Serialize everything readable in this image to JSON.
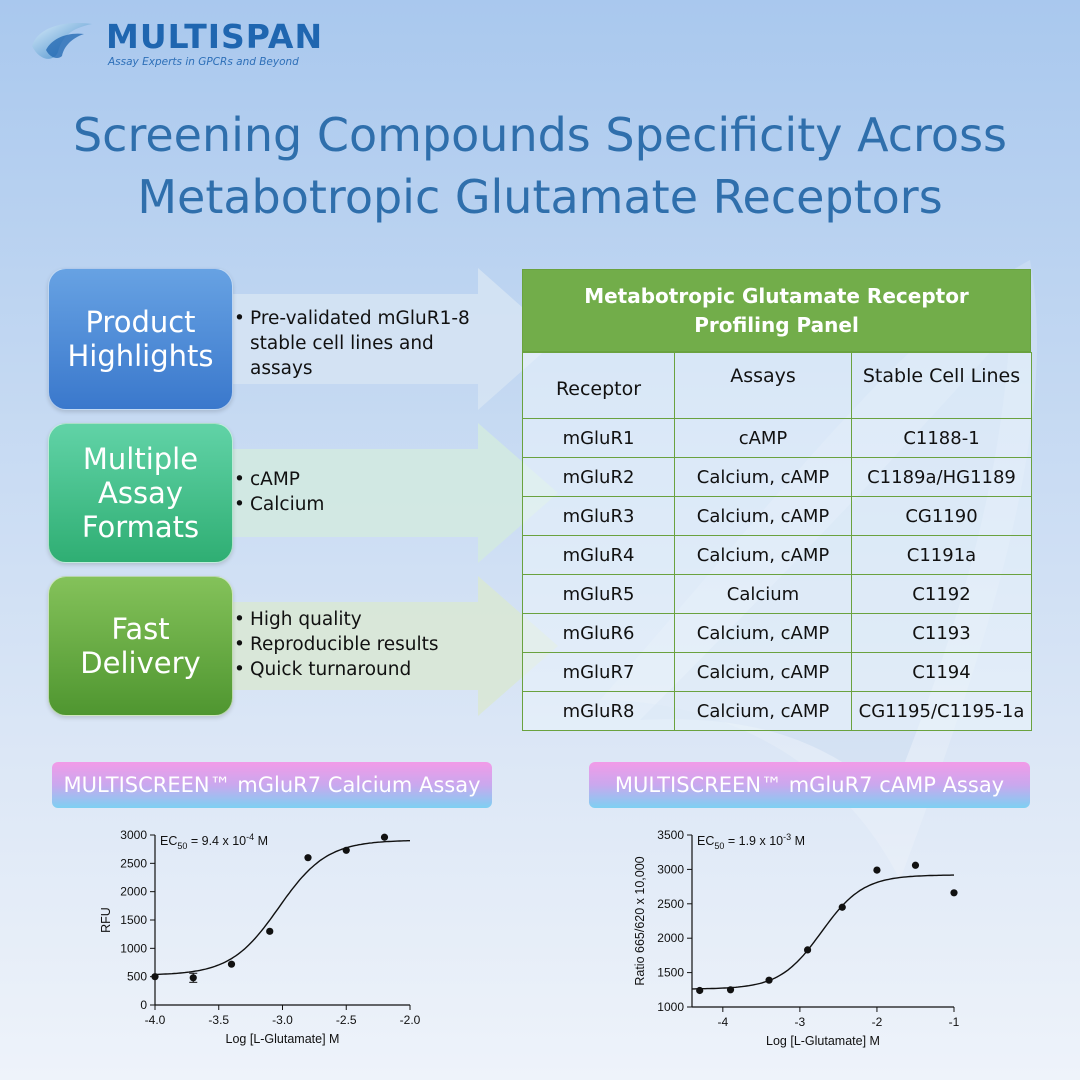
{
  "brand": {
    "name": "MULTISPAN",
    "tagline": "Assay Experts in GPCRs and Beyond"
  },
  "title": {
    "line1": "Screening Compounds Specificity Across",
    "line2": "Metabotropic Glutamate Receptors"
  },
  "features": [
    {
      "heading": [
        "Product",
        "Highlights"
      ],
      "bullets": [
        "Pre-validated mGluR1-8 stable cell lines and assays"
      ]
    },
    {
      "heading": [
        "Multiple",
        "Assay",
        "Formats"
      ],
      "bullets": [
        "cAMP",
        "Calcium"
      ]
    },
    {
      "heading": [
        "Fast",
        "Delivery"
      ],
      "bullets": [
        "High quality",
        "Reproducible results",
        "Quick turnaround"
      ]
    }
  ],
  "colors": {
    "title": "#2f6fac",
    "table_header": "#72ad4a",
    "box_blue": "#3a78cc",
    "box_teal": "#2fae73",
    "box_green": "#4f9630"
  },
  "table": {
    "title_line1": "Metabotropic Glutamate Receptor",
    "title_line2": "Profiling Panel",
    "columns": [
      "Receptor",
      "Assays",
      "Stable Cell Lines"
    ],
    "rows": [
      [
        "mGluR1",
        "cAMP",
        "C1188-1"
      ],
      [
        "mGluR2",
        "Calcium, cAMP",
        "C1189a/HG1189"
      ],
      [
        "mGluR3",
        "Calcium, cAMP",
        "CG1190"
      ],
      [
        "mGluR4",
        "Calcium, cAMP",
        "C1191a"
      ],
      [
        "mGluR5",
        "Calcium",
        "C1192"
      ],
      [
        "mGluR6",
        "Calcium, cAMP",
        "C1193"
      ],
      [
        "mGluR7",
        "Calcium, cAMP",
        "C1194"
      ],
      [
        "mGluR8",
        "Calcium, cAMP",
        "CG1195/C1195-1a"
      ]
    ]
  },
  "assays": [
    {
      "label": "MULTISCREEN™ mGluR7 Calcium Assay"
    },
    {
      "label": "MULTISCREEN™ mGluR7 cAMP Assay"
    }
  ],
  "chart_data": [
    {
      "type": "scatter",
      "xlabel": "Log [L-Glutamate] M",
      "ylabel": "RFU",
      "xlim": [
        -4.0,
        -2.0
      ],
      "ylim": [
        0,
        3000
      ],
      "xticks": [
        -4.0,
        -3.5,
        -3.0,
        -2.5,
        -2.0
      ],
      "xtick_labels": [
        "-4.0",
        "-3.5",
        "-3.0",
        "-2.5",
        "-2.0"
      ],
      "yticks": [
        0,
        500,
        1000,
        1500,
        2000,
        2500,
        3000
      ],
      "ec50_label": {
        "main": "EC",
        "sub": "50",
        "mid": " = 9.4 x 10",
        "sup": "-4",
        "end": " M"
      },
      "points": [
        {
          "x": -4.0,
          "y": 500
        },
        {
          "x": -3.7,
          "y": 480,
          "err": 80
        },
        {
          "x": -3.4,
          "y": 720
        },
        {
          "x": -3.1,
          "y": 1300
        },
        {
          "x": -2.8,
          "y": 2600
        },
        {
          "x": -2.5,
          "y": 2730
        },
        {
          "x": -2.2,
          "y": 2960
        }
      ],
      "fit": {
        "bottom": 525,
        "top": 2910,
        "log_ec50": -3.03,
        "hill": 2.3
      }
    },
    {
      "type": "scatter",
      "xlabel": "Log [L-Glutamate] M",
      "ylabel": "Ratio 665/620 x 10,000",
      "xlim": [
        -4.4,
        -1.0
      ],
      "ylim": [
        1000,
        3500
      ],
      "xticks": [
        -4,
        -3,
        -2,
        -1
      ],
      "xtick_labels": [
        "-4",
        "-3",
        "-2",
        "-1"
      ],
      "yticks": [
        1000,
        1500,
        2000,
        2500,
        3000,
        3500
      ],
      "ec50_label": {
        "main": "EC",
        "sub": "50",
        "mid": " = 1.9 x 10",
        "sup": "-3",
        "end": " M"
      },
      "points": [
        {
          "x": -4.3,
          "y": 1240
        },
        {
          "x": -3.9,
          "y": 1250
        },
        {
          "x": -3.4,
          "y": 1390
        },
        {
          "x": -2.9,
          "y": 1830
        },
        {
          "x": -2.45,
          "y": 2450
        },
        {
          "x": -2.0,
          "y": 2990
        },
        {
          "x": -1.5,
          "y": 3060
        },
        {
          "x": -1.0,
          "y": 2660
        }
      ],
      "fit": {
        "bottom": 1260,
        "top": 2920,
        "log_ec50": -2.72,
        "hill": 1.6
      }
    }
  ]
}
